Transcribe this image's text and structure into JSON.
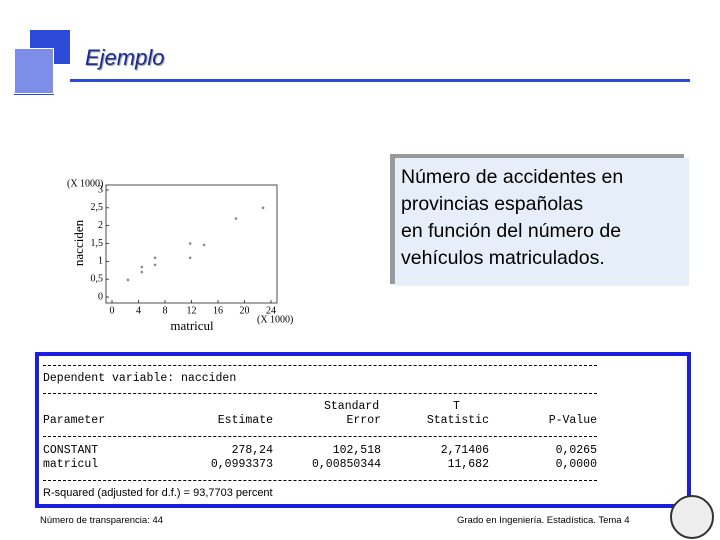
{
  "slide": {
    "title": "Ejemplo",
    "note_lines": [
      "Número de accidentes en",
      "provincias españolas",
      "en función del número de",
      "vehículos matriculados."
    ],
    "footer_left": "Número de transparencia: 44",
    "footer_right": "Grado en Ingeniería. Estadística. Tema 4"
  },
  "chart_data": {
    "type": "scatter",
    "xlabel": "matricul",
    "ylabel": "nacciden",
    "x_scale_label": "(X 1000)",
    "y_scale_label": "(X 1000)",
    "x": [
      2.4,
      4.5,
      4.5,
      6.5,
      6.5,
      11.8,
      11.8,
      13.9,
      18.7,
      22.8
    ],
    "values": [
      0.48,
      0.7,
      0.84,
      0.9,
      1.1,
      1.1,
      1.5,
      1.46,
      2.2,
      2.5
    ],
    "color": "#888888",
    "xlim": [
      0,
      24
    ],
    "xticks": [
      0,
      4,
      8,
      12,
      16,
      20,
      24
    ],
    "ylim": [
      0,
      3
    ],
    "yticks": [
      0,
      {
        "value": 0.5,
        "label": "0,5"
      },
      1,
      {
        "value": 1.5,
        "label": "1,5"
      },
      2,
      {
        "value": 2.5,
        "label": "2,5"
      },
      3
    ]
  },
  "regression": {
    "dependent": "Dependent variable: nacciden",
    "error_top": "Standard",
    "statistic_top": "T",
    "header": [
      "Parameter",
      "Estimate",
      "Error",
      "Statistic",
      "P-Value"
    ],
    "rows": [
      [
        "CONSTANT",
        "278,24",
        "102,518",
        "2,71406",
        "0,0265"
      ],
      [
        "matricul",
        "0,0993373",
        "0,00850344",
        "11,682",
        "0,0000"
      ]
    ],
    "r_squared": "R-squared (adjusted for d.f.) = 93,7703 percent"
  }
}
